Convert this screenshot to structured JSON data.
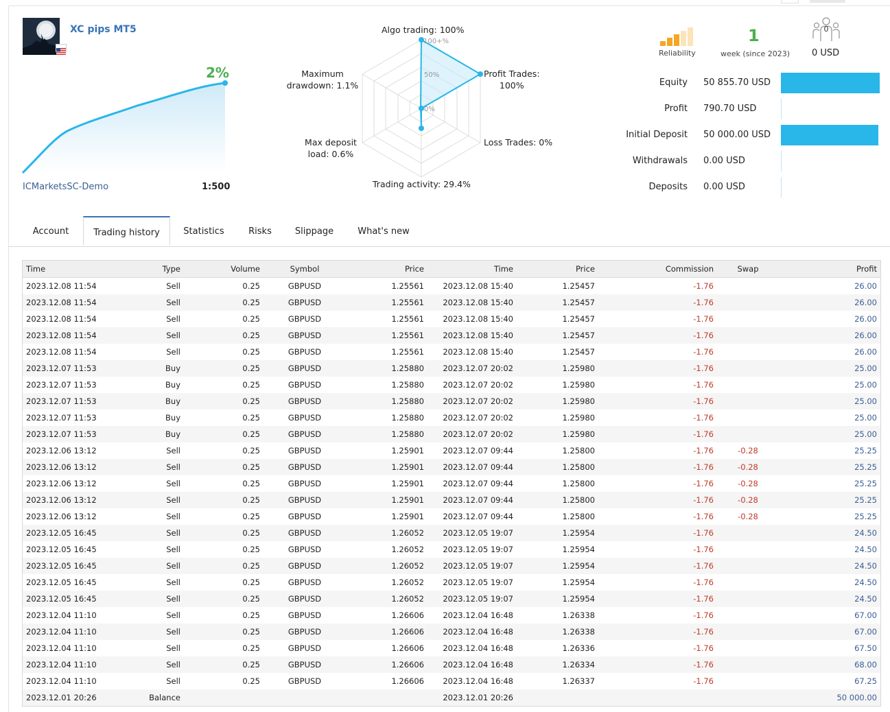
{
  "signal": {
    "name": "XC pips MT5",
    "broker": "ICMarketsSC-Demo",
    "leverage": "1:500",
    "growth": "2%",
    "reliability_label": "Reliability",
    "weeks": "1",
    "weeks_label": "week (since 2023)",
    "subscribers": "0",
    "price": "0 USD"
  },
  "radar": {
    "algo_trading": "Algo trading: 100%",
    "profit_trades": [
      "Profit Trades:",
      "100%"
    ],
    "loss_trades": "Loss Trades: 0%",
    "trading_activity": "Trading activity: 29.4%",
    "max_deposit_load": [
      "Max deposit",
      "load: 0.6%"
    ],
    "max_drawdown": [
      "Maximum",
      "drawdown: 1.1%"
    ],
    "scale": [
      "100+%",
      "50%",
      "0%"
    ],
    "values": {
      "algo_trading": 100,
      "profit_trades": 100,
      "loss_trades": 0,
      "trading_activity": 29.4,
      "max_deposit_load": 0.6,
      "max_drawdown": 1.1
    }
  },
  "stats": [
    {
      "label": "Equity",
      "value": "50 855.70 USD",
      "fill": 1.0
    },
    {
      "label": "Profit",
      "value": "790.70 USD",
      "fill": 0.0
    },
    {
      "label": "Initial Deposit",
      "value": "50 000.00 USD",
      "fill": 0.98
    },
    {
      "label": "Withdrawals",
      "value": "0.00 USD",
      "fill": 0.0
    },
    {
      "label": "Deposits",
      "value": "0.00 USD",
      "fill": 0.0
    }
  ],
  "tabs": [
    {
      "label": "Account",
      "active": false
    },
    {
      "label": "Trading history",
      "active": true
    },
    {
      "label": "Statistics",
      "active": false
    },
    {
      "label": "Risks",
      "active": false
    },
    {
      "label": "Slippage",
      "active": false
    },
    {
      "label": "What's new",
      "active": false
    }
  ],
  "table": {
    "headers": [
      "Time",
      "Type",
      "Volume",
      "Symbol",
      "Price",
      "Time",
      "Price",
      "Commission",
      "Swap",
      "Profit"
    ],
    "rows": [
      [
        "2023.12.08 11:54",
        "Sell",
        "0.25",
        "GBPUSD",
        "1.25561",
        "2023.12.08 15:40",
        "1.25457",
        "-1.76",
        "",
        "26.00"
      ],
      [
        "2023.12.08 11:54",
        "Sell",
        "0.25",
        "GBPUSD",
        "1.25561",
        "2023.12.08 15:40",
        "1.25457",
        "-1.76",
        "",
        "26.00"
      ],
      [
        "2023.12.08 11:54",
        "Sell",
        "0.25",
        "GBPUSD",
        "1.25561",
        "2023.12.08 15:40",
        "1.25457",
        "-1.76",
        "",
        "26.00"
      ],
      [
        "2023.12.08 11:54",
        "Sell",
        "0.25",
        "GBPUSD",
        "1.25561",
        "2023.12.08 15:40",
        "1.25457",
        "-1.76",
        "",
        "26.00"
      ],
      [
        "2023.12.08 11:54",
        "Sell",
        "0.25",
        "GBPUSD",
        "1.25561",
        "2023.12.08 15:40",
        "1.25457",
        "-1.76",
        "",
        "26.00"
      ],
      [
        "2023.12.07 11:53",
        "Buy",
        "0.25",
        "GBPUSD",
        "1.25880",
        "2023.12.07 20:02",
        "1.25980",
        "-1.76",
        "",
        "25.00"
      ],
      [
        "2023.12.07 11:53",
        "Buy",
        "0.25",
        "GBPUSD",
        "1.25880",
        "2023.12.07 20:02",
        "1.25980",
        "-1.76",
        "",
        "25.00"
      ],
      [
        "2023.12.07 11:53",
        "Buy",
        "0.25",
        "GBPUSD",
        "1.25880",
        "2023.12.07 20:02",
        "1.25980",
        "-1.76",
        "",
        "25.00"
      ],
      [
        "2023.12.07 11:53",
        "Buy",
        "0.25",
        "GBPUSD",
        "1.25880",
        "2023.12.07 20:02",
        "1.25980",
        "-1.76",
        "",
        "25.00"
      ],
      [
        "2023.12.07 11:53",
        "Buy",
        "0.25",
        "GBPUSD",
        "1.25880",
        "2023.12.07 20:02",
        "1.25980",
        "-1.76",
        "",
        "25.00"
      ],
      [
        "2023.12.06 13:12",
        "Sell",
        "0.25",
        "GBPUSD",
        "1.25901",
        "2023.12.07 09:44",
        "1.25800",
        "-1.76",
        "-0.28",
        "25.25"
      ],
      [
        "2023.12.06 13:12",
        "Sell",
        "0.25",
        "GBPUSD",
        "1.25901",
        "2023.12.07 09:44",
        "1.25800",
        "-1.76",
        "-0.28",
        "25.25"
      ],
      [
        "2023.12.06 13:12",
        "Sell",
        "0.25",
        "GBPUSD",
        "1.25901",
        "2023.12.07 09:44",
        "1.25800",
        "-1.76",
        "-0.28",
        "25.25"
      ],
      [
        "2023.12.06 13:12",
        "Sell",
        "0.25",
        "GBPUSD",
        "1.25901",
        "2023.12.07 09:44",
        "1.25800",
        "-1.76",
        "-0.28",
        "25.25"
      ],
      [
        "2023.12.06 13:12",
        "Sell",
        "0.25",
        "GBPUSD",
        "1.25901",
        "2023.12.07 09:44",
        "1.25800",
        "-1.76",
        "-0.28",
        "25.25"
      ],
      [
        "2023.12.05 16:45",
        "Sell",
        "0.25",
        "GBPUSD",
        "1.26052",
        "2023.12.05 19:07",
        "1.25954",
        "-1.76",
        "",
        "24.50"
      ],
      [
        "2023.12.05 16:45",
        "Sell",
        "0.25",
        "GBPUSD",
        "1.26052",
        "2023.12.05 19:07",
        "1.25954",
        "-1.76",
        "",
        "24.50"
      ],
      [
        "2023.12.05 16:45",
        "Sell",
        "0.25",
        "GBPUSD",
        "1.26052",
        "2023.12.05 19:07",
        "1.25954",
        "-1.76",
        "",
        "24.50"
      ],
      [
        "2023.12.05 16:45",
        "Sell",
        "0.25",
        "GBPUSD",
        "1.26052",
        "2023.12.05 19:07",
        "1.25954",
        "-1.76",
        "",
        "24.50"
      ],
      [
        "2023.12.05 16:45",
        "Sell",
        "0.25",
        "GBPUSD",
        "1.26052",
        "2023.12.05 19:07",
        "1.25954",
        "-1.76",
        "",
        "24.50"
      ],
      [
        "2023.12.04 11:10",
        "Sell",
        "0.25",
        "GBPUSD",
        "1.26606",
        "2023.12.04 16:48",
        "1.26338",
        "-1.76",
        "",
        "67.00"
      ],
      [
        "2023.12.04 11:10",
        "Sell",
        "0.25",
        "GBPUSD",
        "1.26606",
        "2023.12.04 16:48",
        "1.26338",
        "-1.76",
        "",
        "67.00"
      ],
      [
        "2023.12.04 11:10",
        "Sell",
        "0.25",
        "GBPUSD",
        "1.26606",
        "2023.12.04 16:48",
        "1.26336",
        "-1.76",
        "",
        "67.50"
      ],
      [
        "2023.12.04 11:10",
        "Sell",
        "0.25",
        "GBPUSD",
        "1.26606",
        "2023.12.04 16:48",
        "1.26334",
        "-1.76",
        "",
        "68.00"
      ],
      [
        "2023.12.04 11:10",
        "Sell",
        "0.25",
        "GBPUSD",
        "1.26606",
        "2023.12.04 16:48",
        "1.26337",
        "-1.76",
        "",
        "67.25"
      ],
      [
        "2023.12.01 20:26",
        "Balance",
        "",
        "",
        "",
        "2023.12.01 20:26",
        "",
        "",
        "",
        "50 000.00"
      ]
    ]
  },
  "colors": {
    "accent": "#29b6e8",
    "growth": "#4caf50",
    "link": "#3a73b8",
    "negative": "#c0392b"
  }
}
